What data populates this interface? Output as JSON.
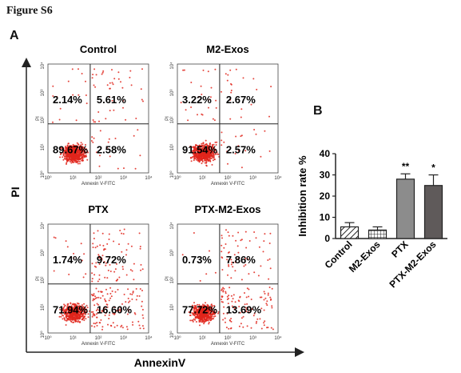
{
  "figure_title": "Figure S6",
  "panel_a_label": "A",
  "panel_b_label": "B",
  "colors": {
    "dots": "#e0261c",
    "quad_line": "#222222",
    "axis": "#222222"
  },
  "chart_data": [
    {
      "type": "scatter",
      "panel": "A",
      "outer_xlabel": "AnnexinV",
      "outer_ylabel": "PI",
      "plot_xlabel": "Annexin V-FITC",
      "plot_ylabel": "PI",
      "axis_scale": "log",
      "axis_range": [
        1,
        10000
      ],
      "tick_labels": [
        "10⁰",
        "10¹",
        "10²",
        "10³",
        "10⁴"
      ],
      "plots": [
        {
          "name": "Control",
          "upper_left": "2.14%",
          "upper_right": "5.61%",
          "lower_left": "89.67%",
          "lower_right": "2.58%"
        },
        {
          "name": "M2-Exos",
          "upper_left": "3.22%",
          "upper_right": "2.67%",
          "lower_left": "91.54%",
          "lower_right": "2.57%"
        },
        {
          "name": "PTX",
          "upper_left": "1.74%",
          "upper_right": "9.72%",
          "lower_left": "71.94%",
          "lower_right": "16.60%"
        },
        {
          "name": "PTX-M2-Exos",
          "upper_left": "0.73%",
          "upper_right": "7.86%",
          "lower_left": "77.72%",
          "lower_right": "13.69%"
        }
      ]
    },
    {
      "type": "bar",
      "panel": "B",
      "ylabel": "Inhibition rate %",
      "ylim": [
        0,
        40
      ],
      "yticks": [
        "0",
        "10",
        "20",
        "30",
        "40"
      ],
      "categories": [
        "Control",
        "M2-Exos",
        "PTX",
        "PTX-M2-Exos"
      ],
      "values": [
        5.5,
        4,
        28,
        25
      ],
      "errors": [
        2,
        1.5,
        2.5,
        5
      ],
      "significance": [
        "",
        "",
        "**",
        "*"
      ],
      "fills": [
        "hatched",
        "crosshatched",
        "#8c8c8c",
        "#5f5a5a"
      ]
    }
  ]
}
